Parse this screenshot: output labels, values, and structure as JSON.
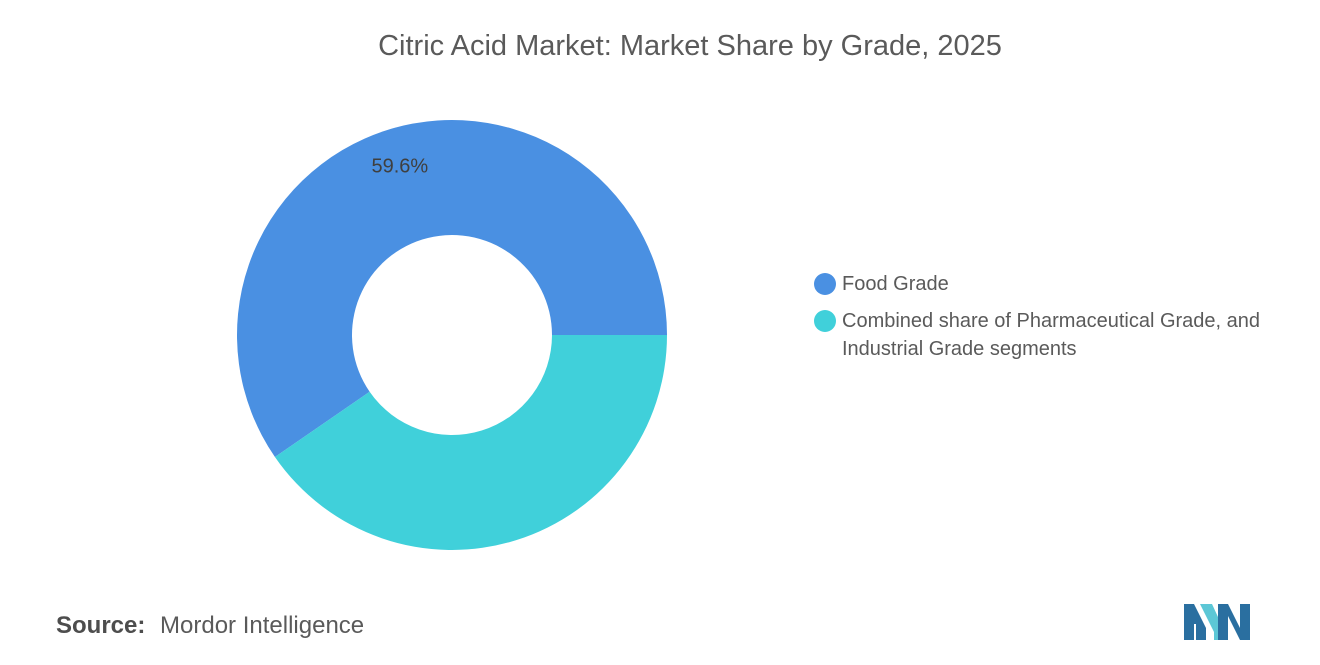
{
  "title": "Citric Acid Market: Market Share by Grade, 2025",
  "chart_data": {
    "type": "pie",
    "variant": "donut",
    "title": "Citric Acid Market: Market Share by Grade, 2025",
    "slices": [
      {
        "label": "Food Grade",
        "value": 59.6,
        "color": "#4a90e2",
        "data_label": "59.6%"
      },
      {
        "label": "Combined share of Pharmaceutical Grade, and Industrial Grade segments",
        "value": 40.4,
        "color": "#40d0da",
        "data_label": ""
      }
    ],
    "legend_position": "right"
  },
  "source": {
    "label": "Source:",
    "text": "Mordor Intelligence"
  },
  "logo": {
    "icon": "mordor-intelligence-logo-icon",
    "colors": [
      "#2a6fa0",
      "#5cc7d6"
    ]
  }
}
